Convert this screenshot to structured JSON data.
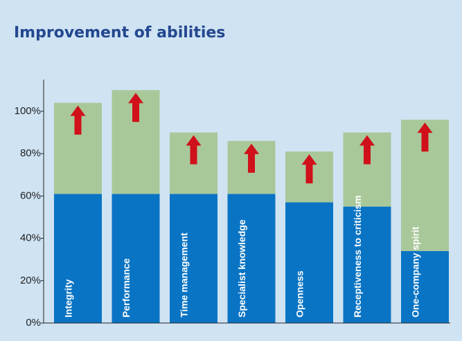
{
  "chart_data": {
    "type": "stacked_bar",
    "title": "Improvement of abilities",
    "categories": [
      "Integrity",
      "Performance",
      "Time management",
      "Specialist knowledge",
      "Openness",
      "Receptiveness to criticism",
      "One-company spirit"
    ],
    "series": [
      {
        "color": "#0a74c4",
        "values": [
          61,
          61,
          61,
          61,
          57,
          55,
          34
        ]
      },
      {
        "color": "#a8c89a",
        "values": [
          43,
          49,
          29,
          25,
          24,
          35,
          62
        ]
      }
    ],
    "arrow_color": "#d0101a",
    "ylim": [
      0,
      115
    ],
    "yticks": [
      {
        "value": 0,
        "label": "0%"
      },
      {
        "value": 20,
        "label": "20%"
      },
      {
        "value": 40,
        "label": "40%"
      },
      {
        "value": 60,
        "label": "60%"
      },
      {
        "value": 80,
        "label": "80%"
      },
      {
        "value": 100,
        "label": "100%"
      }
    ]
  }
}
